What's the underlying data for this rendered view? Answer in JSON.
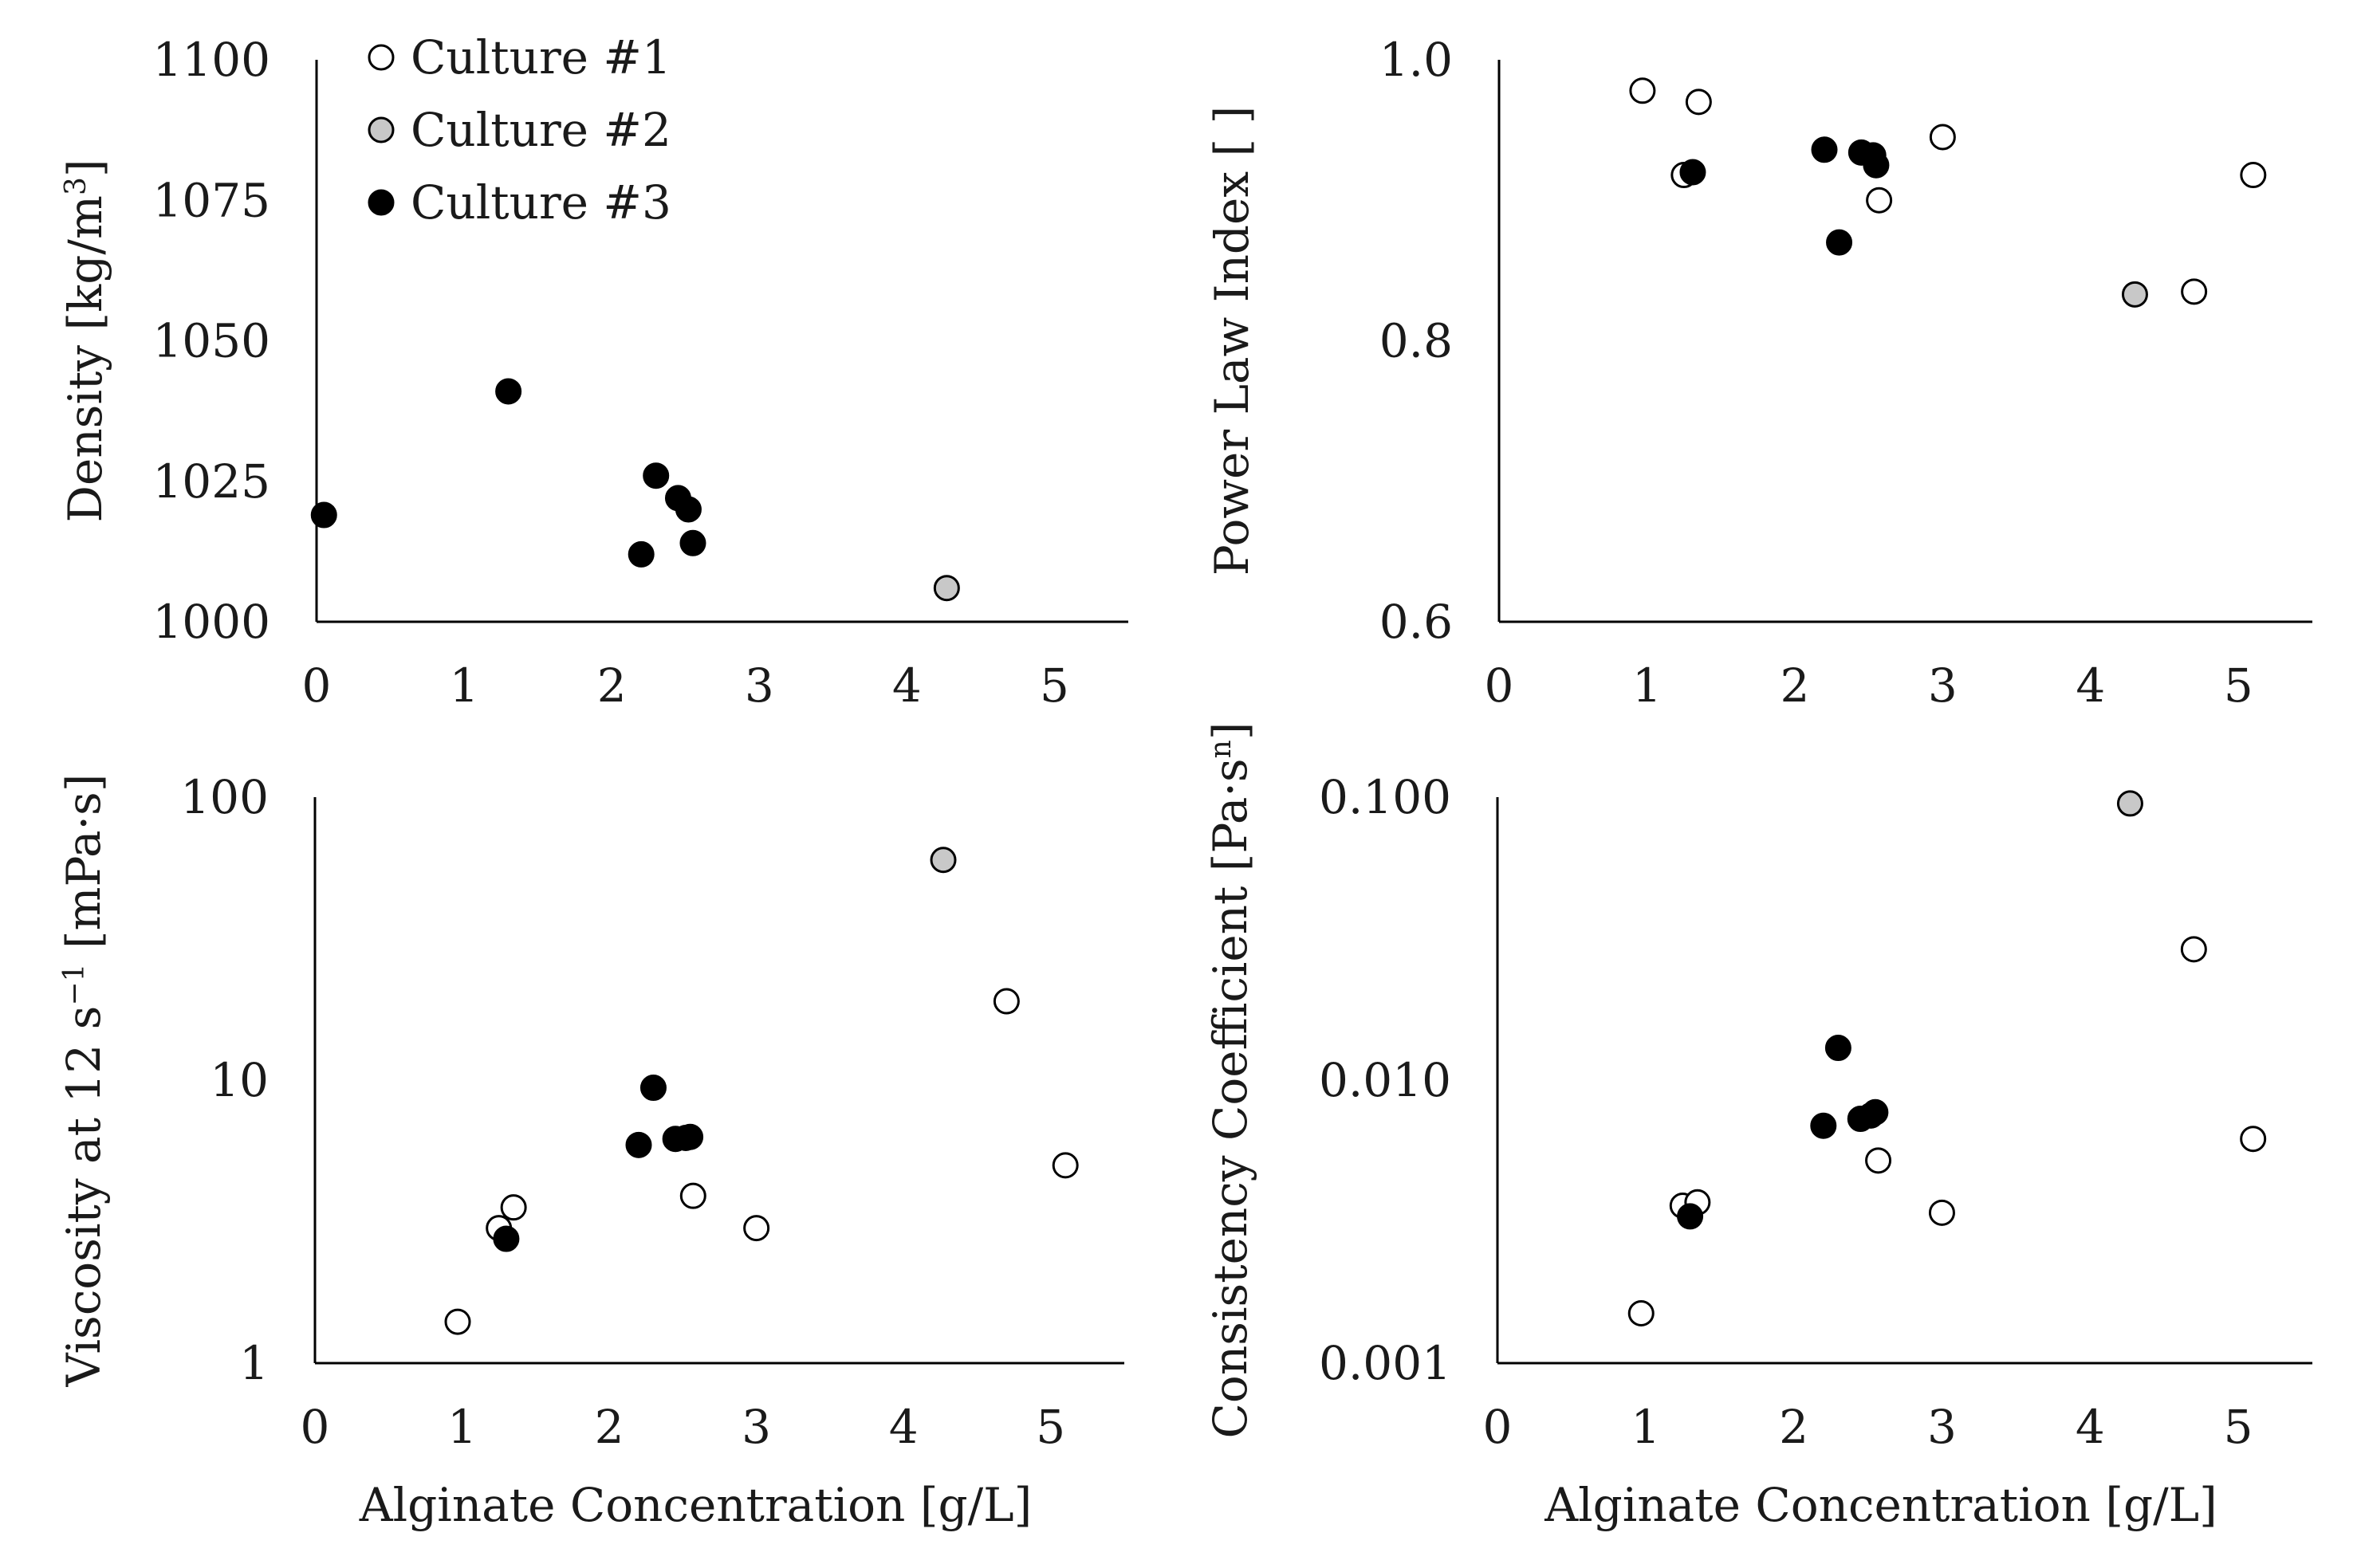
{
  "colors": {
    "culture1_fill": "#ffffff",
    "culture2_fill": "#c8c8c8",
    "culture3_fill": "#000000",
    "marker_stroke": "#000000",
    "axis": "#000000",
    "text": "#1a1a1a"
  },
  "legend": [
    {
      "name": "Culture #1",
      "fill": "#ffffff"
    },
    {
      "name": "Culture #2",
      "fill": "#c8c8c8"
    },
    {
      "name": "Culture #3",
      "fill": "#000000"
    }
  ],
  "chart_data": [
    {
      "type": "scatter",
      "title": "",
      "xlabel": "",
      "ylabel": "Density [kg/m",
      "ylabel_sup": "3",
      "ylabel_end": "]",
      "xlim": [
        0,
        5.5
      ],
      "ylim": [
        1000,
        1100
      ],
      "yscale": "linear",
      "xticks": [
        0,
        1,
        2,
        3,
        4,
        5
      ],
      "xtick_labels": [
        "0",
        "1",
        "2",
        "3",
        "4",
        "5"
      ],
      "yticks": [
        1000,
        1025,
        1050,
        1075,
        1100
      ],
      "ytick_labels": [
        "1000",
        "1025",
        "1050",
        "1075",
        "1100"
      ],
      "grid": false,
      "legend_position": "top-left",
      "series": [
        {
          "name": "Culture #1",
          "x": [],
          "y": []
        },
        {
          "name": "Culture #2",
          "x": [
            4.27
          ],
          "y": [
            1006
          ]
        },
        {
          "name": "Culture #3",
          "x": [
            0.05,
            1.3,
            2.2,
            2.3,
            2.45,
            2.52,
            2.55
          ],
          "y": [
            1019,
            1041,
            1012,
            1026,
            1022,
            1020,
            1014
          ]
        }
      ]
    },
    {
      "type": "scatter",
      "title": "",
      "xlabel": "",
      "ylabel": "Power Law Index [ ]",
      "xlim": [
        0,
        5.5
      ],
      "ylim": [
        0.6,
        1.0
      ],
      "yscale": "linear",
      "xticks": [
        0,
        1,
        2,
        3,
        4,
        5
      ],
      "xtick_labels": [
        "0",
        "1",
        "2",
        "3",
        "4",
        "5"
      ],
      "yticks": [
        0.6,
        0.8,
        1.0
      ],
      "ytick_labels": [
        "0.6",
        "0.8",
        "1.0"
      ],
      "grid": false,
      "series": [
        {
          "name": "Culture #1",
          "x": [
            0.97,
            1.25,
            1.35,
            2.57,
            3.0,
            4.7,
            5.1
          ],
          "y": [
            0.978,
            0.918,
            0.97,
            0.9,
            0.945,
            0.835,
            0.918
          ]
        },
        {
          "name": "Culture #2",
          "x": [
            4.3
          ],
          "y": [
            0.833
          ]
        },
        {
          "name": "Culture #3",
          "x": [
            1.31,
            2.2,
            2.3,
            2.45,
            2.53,
            2.55
          ],
          "y": [
            0.92,
            0.936,
            0.87,
            0.934,
            0.932,
            0.925
          ]
        }
      ]
    },
    {
      "type": "scatter",
      "title": "",
      "xlabel": "Alginate Concentration [g/L]",
      "ylabel": "Viscosity at 12 s",
      "ylabel_sup": "−1",
      "ylabel_end": " [mPa·s]",
      "xlim": [
        0,
        5.5
      ],
      "ylim": [
        1,
        100
      ],
      "yscale": "log",
      "xticks": [
        0,
        1,
        2,
        3,
        4,
        5
      ],
      "xtick_labels": [
        "0",
        "1",
        "2",
        "3",
        "4",
        "5"
      ],
      "yticks": [
        1,
        10,
        100
      ],
      "ytick_labels": [
        "1",
        "10",
        "100"
      ],
      "grid": false,
      "series": [
        {
          "name": "Culture #1",
          "x": [
            0.97,
            1.25,
            1.35,
            2.57,
            3.0,
            4.7,
            5.1
          ],
          "y": [
            1.4,
            3.0,
            3.55,
            3.9,
            3.0,
            19,
            5.0
          ]
        },
        {
          "name": "Culture #2",
          "x": [
            4.27
          ],
          "y": [
            60
          ]
        },
        {
          "name": "Culture #3",
          "x": [
            1.3,
            2.2,
            2.3,
            2.45,
            2.52,
            2.55
          ],
          "y": [
            2.75,
            5.9,
            9.4,
            6.2,
            6.25,
            6.3
          ]
        }
      ]
    },
    {
      "type": "scatter",
      "title": "",
      "xlabel": "Alginate Concentration [g/L]",
      "ylabel": "Consistency Coefficient [Pa·s",
      "ylabel_sup": "n",
      "ylabel_end": "]",
      "xlim": [
        0,
        5.5
      ],
      "ylim": [
        0.001,
        0.1
      ],
      "yscale": "log",
      "xticks": [
        0,
        1,
        2,
        3,
        4,
        5
      ],
      "xtick_labels": [
        "0",
        "1",
        "2",
        "3",
        "4",
        "5"
      ],
      "yticks": [
        0.001,
        0.01,
        0.1
      ],
      "ytick_labels": [
        "0.001",
        "0.010",
        "0.100"
      ],
      "grid": false,
      "series": [
        {
          "name": "Culture #1",
          "x": [
            0.97,
            1.25,
            1.35,
            2.57,
            3.0,
            4.7,
            5.1
          ],
          "y": [
            0.0015,
            0.0036,
            0.0037,
            0.0052,
            0.0034,
            0.029,
            0.0062
          ]
        },
        {
          "name": "Culture #2",
          "x": [
            4.27
          ],
          "y": [
            0.095
          ]
        },
        {
          "name": "Culture #3",
          "x": [
            1.3,
            2.2,
            2.3,
            2.45,
            2.52,
            2.55
          ],
          "y": [
            0.0033,
            0.0069,
            0.013,
            0.0073,
            0.0075,
            0.0077
          ]
        }
      ]
    }
  ]
}
